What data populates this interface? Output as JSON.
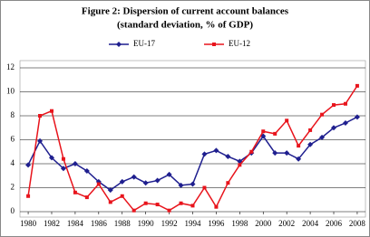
{
  "chart_data": {
    "type": "line",
    "title": "Figure 2: Dispersion of current account balances",
    "subtitle": "(standard deviation, % of GDP)",
    "x": [
      1980,
      1981,
      1982,
      1983,
      1984,
      1985,
      1986,
      1987,
      1988,
      1989,
      1990,
      1991,
      1992,
      1993,
      1994,
      1995,
      1996,
      1997,
      1998,
      1999,
      2000,
      2001,
      2002,
      2003,
      2004,
      2005,
      2006,
      2007,
      2008
    ],
    "series": [
      {
        "name": "EU-17",
        "color": "#1f1f8f",
        "marker": "diamond",
        "values": [
          3.9,
          5.9,
          4.5,
          3.6,
          4.0,
          3.4,
          2.5,
          1.8,
          2.5,
          2.9,
          2.4,
          2.6,
          3.1,
          2.2,
          2.3,
          4.8,
          5.1,
          4.6,
          4.2,
          4.9,
          6.3,
          4.9,
          4.9,
          4.4,
          5.6,
          6.2,
          7.0,
          7.4,
          7.9
        ]
      },
      {
        "name": "EU-12",
        "color": "#e8141c",
        "marker": "square",
        "values": [
          1.3,
          8.0,
          8.4,
          4.4,
          1.6,
          1.2,
          2.3,
          0.8,
          1.3,
          0.1,
          0.7,
          0.6,
          0.1,
          0.7,
          0.5,
          2.0,
          0.4,
          2.4,
          3.9,
          5.0,
          6.7,
          6.5,
          7.6,
          5.5,
          6.8,
          8.1,
          8.9,
          9.0,
          10.5
        ]
      }
    ],
    "xlim": [
      1979.3,
      2008.7
    ],
    "xticks": [
      1980,
      1982,
      1984,
      1986,
      1988,
      1990,
      1992,
      1994,
      1996,
      1998,
      2000,
      2002,
      2004,
      2006,
      2008
    ],
    "ylim": [
      0,
      12
    ],
    "yticks": [
      0,
      2,
      4,
      6,
      8,
      10,
      12
    ],
    "grid": true
  }
}
